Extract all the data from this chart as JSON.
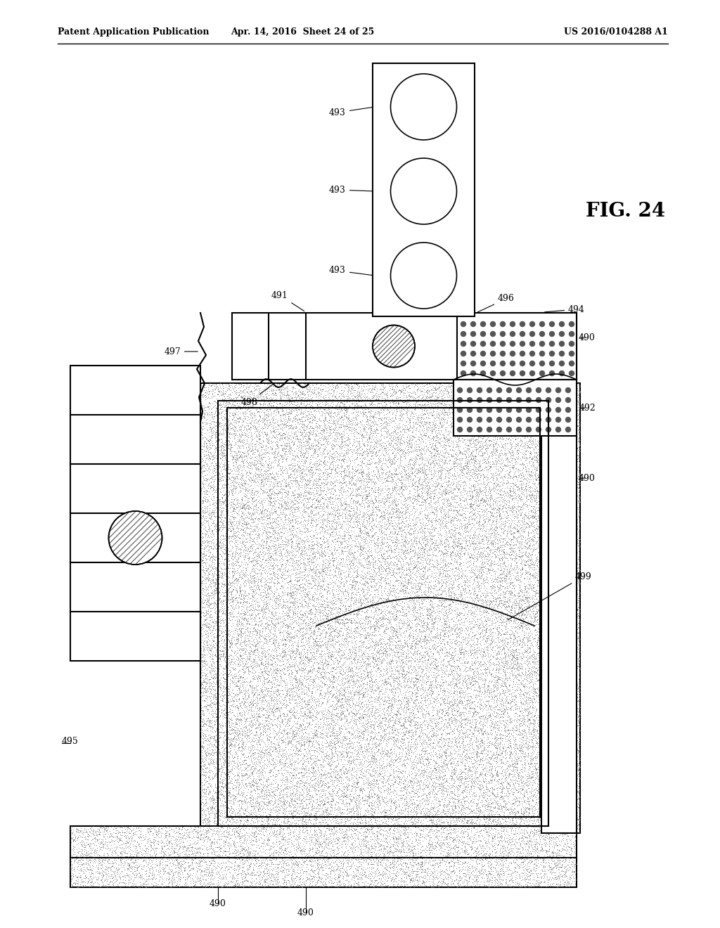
{
  "header_left": "Patent Application Publication",
  "header_mid": "Apr. 14, 2016  Sheet 24 of 25",
  "header_right": "US 2016/0104288 A1",
  "fig_label": "FIG. 24",
  "bg_color": "#ffffff",
  "line_color": "#000000",
  "stipple_color": "#aaaaaa",
  "dot_color": "#666666"
}
